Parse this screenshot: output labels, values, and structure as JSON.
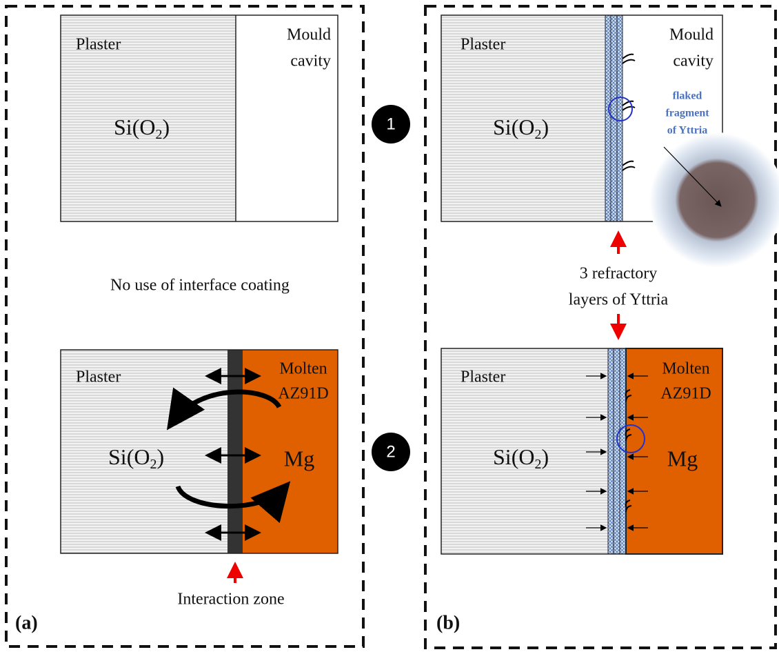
{
  "panel_a": {
    "tag": "(a)",
    "top": {
      "plaster": "Plaster",
      "cavity": [
        "Mould",
        "cavity"
      ],
      "compound": {
        "main": "Si(O",
        "sub": "2",
        "close": ")"
      }
    },
    "caption": "No use of interface coating",
    "bottom": {
      "plaster": "Plaster",
      "metal": [
        "Molten",
        "AZ91D"
      ],
      "compound": {
        "main": "Si(O",
        "sub": "2",
        "close": ")"
      },
      "element": "Mg",
      "zone": "Interaction zone"
    }
  },
  "steps": [
    "1",
    "2"
  ],
  "panel_b": {
    "tag": "(b)",
    "top": {
      "plaster": "Plaster",
      "cavity": [
        "Mould",
        "cavity"
      ],
      "compound": {
        "main": "Si(O",
        "sub": "2",
        "close": ")"
      },
      "fragment": [
        "flaked",
        "fragment",
        "of Yttria"
      ]
    },
    "layers": [
      "3 refractory",
      "layers of Yttria"
    ],
    "bottom": {
      "plaster": "Plaster",
      "metal": [
        "Molten",
        "AZ91D"
      ],
      "compound": {
        "main": "Si(O",
        "sub": "2",
        "close": ")"
      },
      "element": "Mg"
    }
  }
}
